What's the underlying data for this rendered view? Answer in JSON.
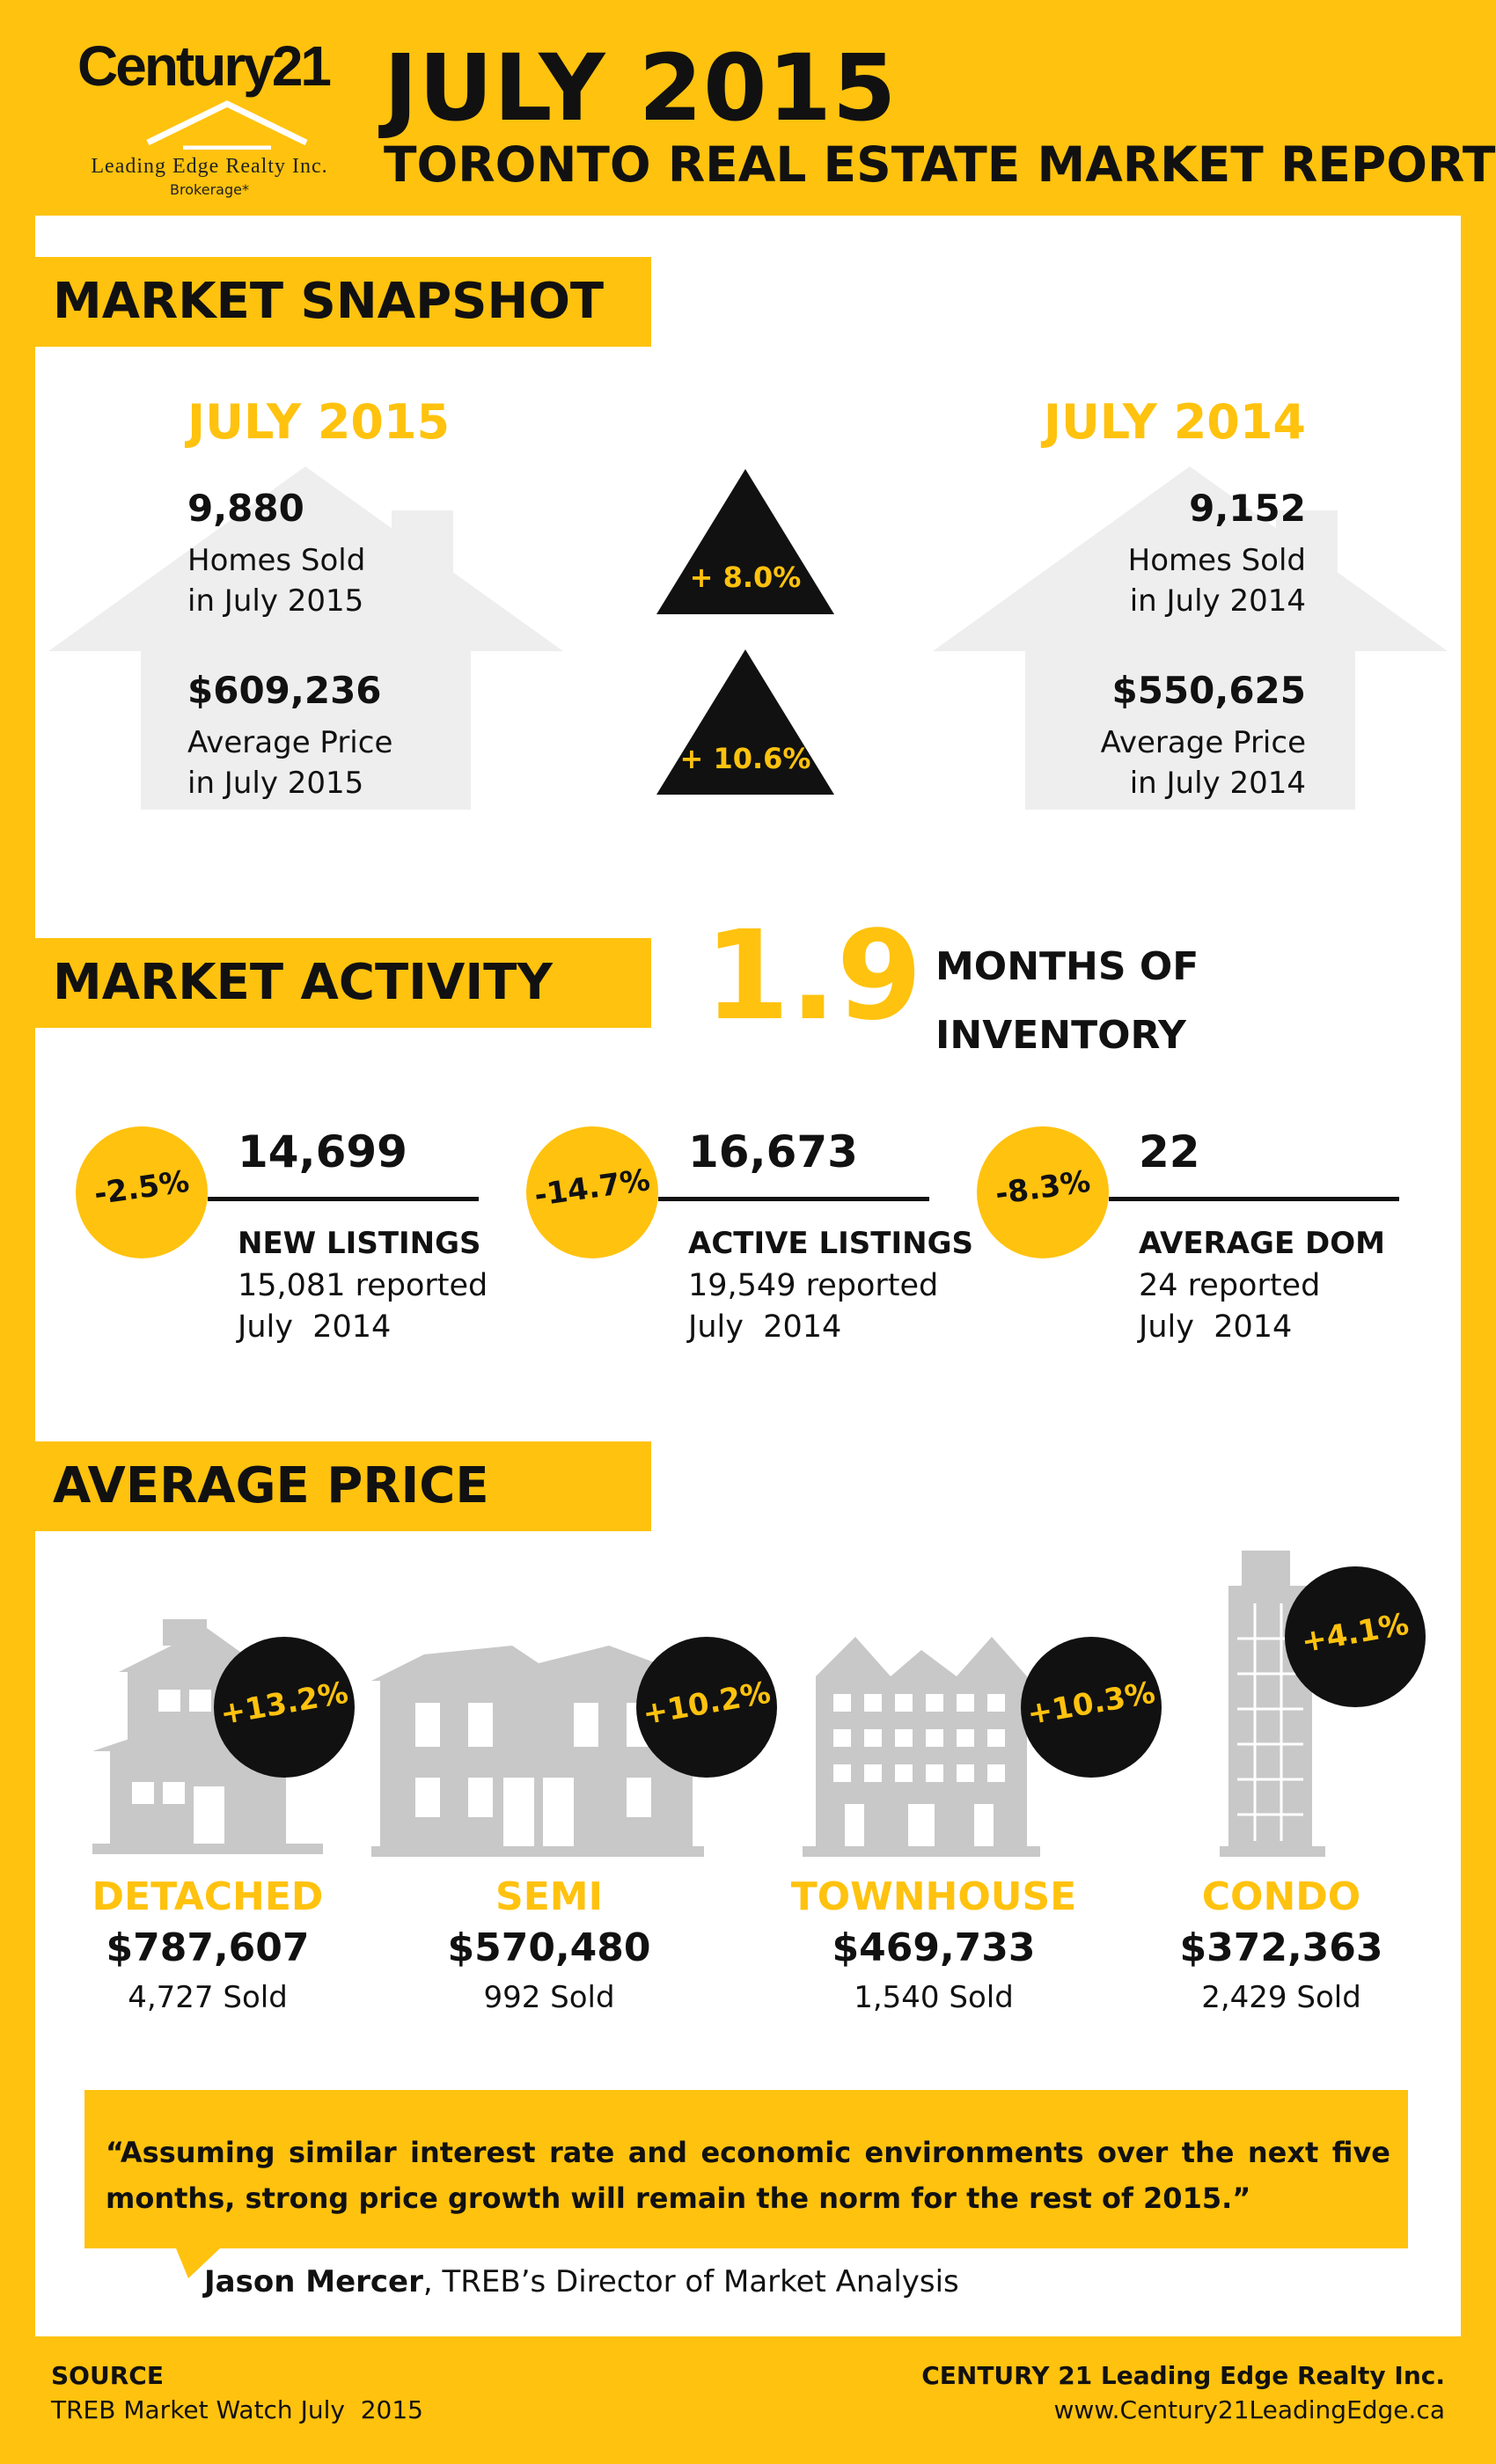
{
  "logo": {
    "wordmark": "Century21",
    "company": "Leading Edge Realty Inc.",
    "brokerage": "Brokerage*"
  },
  "header": {
    "title": "JULY 2015",
    "subtitle": "TORONTO REAL ESTATE MARKET REPORT"
  },
  "snapshot": {
    "section_title": "MARKET SNAPSHOT",
    "left": {
      "heading": "JULY 2015",
      "homes_sold": "9,880",
      "homes_sold_label": "Homes Sold",
      "homes_sold_period": "in July 2015",
      "avg_price": "$609,236",
      "avg_price_label": "Average Price",
      "avg_price_period": "in July 2015"
    },
    "right": {
      "heading": "JULY 2014",
      "homes_sold": "9,152",
      "homes_sold_label": "Homes Sold",
      "homes_sold_period": "in July 2014",
      "avg_price": "$550,625",
      "avg_price_label": "Average Price",
      "avg_price_period": "in July 2014"
    },
    "change_sold": "+ 8.0%",
    "change_price": "+ 10.6%"
  },
  "activity": {
    "section_title": "MARKET ACTIVITY",
    "inventory_value": "1.9",
    "inventory_label_1": "MONTHS OF",
    "inventory_label_2": "INVENTORY",
    "items": [
      {
        "change": "-2.5%",
        "value": "14,699",
        "title": "NEW LISTINGS",
        "reported": "15,081 reported",
        "period": "July  2014"
      },
      {
        "change": "-14.7%",
        "value": "16,673",
        "title": "ACTIVE LISTINGS",
        "reported": "19,549 reported",
        "period": "July  2014"
      },
      {
        "change": "-8.3%",
        "value": "22",
        "title": "AVERAGE DOM",
        "reported": "24 reported",
        "period": "July  2014"
      }
    ]
  },
  "avg_price": {
    "section_title": "AVERAGE PRICE",
    "types": [
      {
        "change": "+13.2%",
        "name": "DETACHED",
        "price": "$787,607",
        "sold": "4,727 Sold"
      },
      {
        "change": "+10.2%",
        "name": "SEMI",
        "price": "$570,480",
        "sold": "992 Sold"
      },
      {
        "change": "+10.3%",
        "name": "TOWNHOUSE",
        "price": "$469,733",
        "sold": "1,540 Sold"
      },
      {
        "change": "+4.1%",
        "name": "CONDO",
        "price": "$372,363",
        "sold": "2,429 Sold"
      }
    ]
  },
  "quote": {
    "text": "“Assuming similar interest rate and economic environments over the next five months, strong price growth will remain the norm for the rest of 2015.”",
    "author": "Jason Mercer",
    "author_role": ", TREB’s Director of Market Analysis"
  },
  "footer": {
    "source_heading": "SOURCE",
    "source_text": "TREB Market Watch July  2015",
    "company": "CENTURY 21 Leading Edge Realty Inc.",
    "website": "www.Century21LeadingEdge.ca"
  },
  "colors": {
    "brand_yellow": "#ffc20e",
    "black": "#111111",
    "ghost_gray": "#d9d9d9"
  }
}
